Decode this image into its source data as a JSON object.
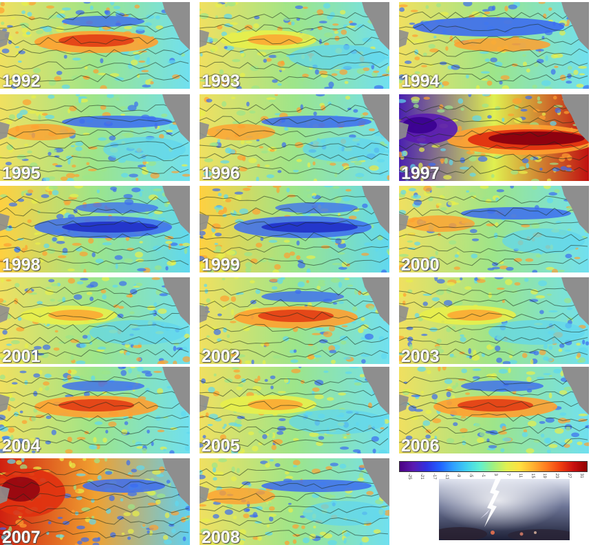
{
  "panels": [
    {
      "year": "1992",
      "variant": "warm-center"
    },
    {
      "year": "1993",
      "variant": "mild"
    },
    {
      "year": "1994",
      "variant": "cool-north"
    },
    {
      "year": "1995",
      "variant": "cool-east"
    },
    {
      "year": "1996",
      "variant": "cool-east"
    },
    {
      "year": "1997",
      "variant": "el-nino"
    },
    {
      "year": "1998",
      "variant": "la-nina"
    },
    {
      "year": "1999",
      "variant": "la-nina"
    },
    {
      "year": "2000",
      "variant": "cool-east"
    },
    {
      "year": "2001",
      "variant": "mild"
    },
    {
      "year": "2002",
      "variant": "warm-center"
    },
    {
      "year": "2003",
      "variant": "mild"
    },
    {
      "year": "2004",
      "variant": "warm-center"
    },
    {
      "year": "2005",
      "variant": "mild"
    },
    {
      "year": "2006",
      "variant": "warm-center"
    },
    {
      "year": "2007",
      "variant": "warm-west"
    },
    {
      "year": "2008",
      "variant": "cool-east"
    }
  ],
  "legend": {
    "ticks": [
      "-25",
      "-21",
      "-17",
      "-13",
      "-9",
      "-5",
      "-1",
      "3",
      "7",
      "11",
      "15",
      "19",
      "23",
      "27",
      "31"
    ],
    "colors": [
      "#4b0082",
      "#5a1ab0",
      "#3030e0",
      "#2060ff",
      "#30a0ff",
      "#40d0f0",
      "#60f0d0",
      "#a0f080",
      "#e0f050",
      "#ffe040",
      "#ffb030",
      "#ff7a20",
      "#f04010",
      "#c81010",
      "#900000"
    ]
  },
  "illustration": {
    "icon": "lightning-storm-image"
  }
}
